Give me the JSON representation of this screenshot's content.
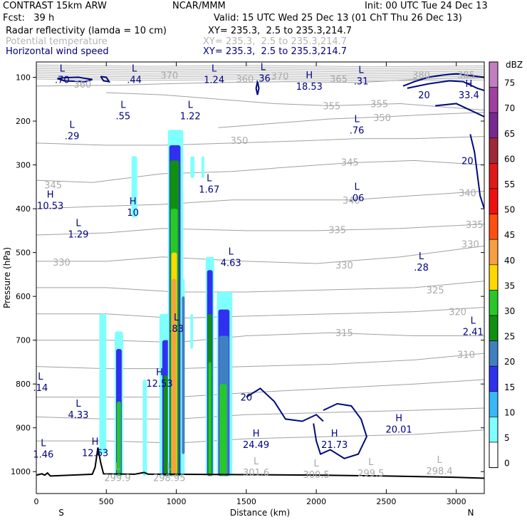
{
  "header": {
    "model": "CONTRAST 15km ARW",
    "center": "NCAR/MMM",
    "init": "Init: 00 UTC Tue 24 Dec 13",
    "fcst": "Fcst:   39 h",
    "valid": "Valid: 15 UTC Wed 25 Dec 13 (01 ChT Thu 26 Dec 13)",
    "fields": [
      {
        "name": "Radar reflectivity (lamda = 10 cm)",
        "xy": "XY= 235.3,  2.5 to 235.3,214.7",
        "color": "#000000"
      },
      {
        "name": "Potential temperature",
        "xy": "XY= 235.3,  2.5 to 235.3,214.7",
        "color": "#b4b4b4"
      },
      {
        "name": "Horizontal wind speed",
        "xy": "XY= 235.3,  2.5 to 235.3,214.7",
        "color": "#00007a"
      }
    ]
  },
  "chart_data": {
    "type": "cross-section",
    "xlabel": "Distance (km)",
    "ylabel": "Pressure (hPa)",
    "xlim": [
      0,
      3200
    ],
    "ylim": [
      1050,
      65
    ],
    "x_ticks": [
      0,
      500,
      1000,
      1500,
      2000,
      2500,
      3000
    ],
    "y_ticks": [
      100,
      200,
      300,
      400,
      500,
      600,
      700,
      800,
      900,
      1000
    ],
    "x_end_labels": {
      "left": "S",
      "right": "N"
    },
    "colorbar": {
      "unit": "dBZ",
      "levels": [
        75,
        70,
        65,
        60,
        55,
        50,
        45,
        40,
        35,
        30,
        25,
        20,
        15,
        10,
        5,
        0
      ],
      "colors": [
        "#c080c0",
        "#a040a0",
        "#782890",
        "#a02838",
        "#e01818",
        "#f01010",
        "#ff5010",
        "#f8a040",
        "#ffd800",
        "#28c828",
        "#109010",
        "#4080c0",
        "#3030f0",
        "#38b8f8",
        "#80ffff",
        "#ffffff"
      ]
    },
    "wind_labels": [
      {
        "kind": "L",
        "value": ".70",
        "x": 185,
        "p": 100
      },
      {
        "kind": "L",
        "value": ".44",
        "x": 700,
        "p": 100
      },
      {
        "kind": "L",
        "value": "1.24",
        "x": 1270,
        "p": 100
      },
      {
        "kind": "L",
        "value": ".36",
        "x": 1620,
        "p": 97
      },
      {
        "kind": "H",
        "value": "18.53",
        "x": 1950,
        "p": 115
      },
      {
        "kind": "L",
        "value": ".31",
        "x": 2320,
        "p": 103
      },
      {
        "kind": "H",
        "value": "33.4",
        "x": 3090,
        "p": 135
      },
      {
        "kind": "L",
        "value": ".55",
        "x": 620,
        "p": 183
      },
      {
        "kind": "L",
        "value": "1.22",
        "x": 1100,
        "p": 183
      },
      {
        "kind": "L",
        "value": ".29",
        "x": 255,
        "p": 228
      },
      {
        "kind": "L",
        "value": ".76",
        "x": 2290,
        "p": 215
      },
      {
        "kind": "L",
        "value": "1.67",
        "x": 1235,
        "p": 350
      },
      {
        "kind": "H",
        "value": "10.53",
        "x": 100,
        "p": 388
      },
      {
        "kind": "H",
        "value": "10",
        "x": 690,
        "p": 403
      },
      {
        "kind": "L",
        "value": ".06",
        "x": 2290,
        "p": 370
      },
      {
        "kind": "L",
        "value": "1.29",
        "x": 300,
        "p": 453
      },
      {
        "kind": "L",
        "value": "4.63",
        "x": 1390,
        "p": 518
      },
      {
        "kind": "L",
        "value": ".28",
        "x": 2750,
        "p": 528
      },
      {
        "kind": "L",
        "value": ".83",
        "x": 1000,
        "p": 668
      },
      {
        "kind": "L",
        "value": "2.41",
        "x": 3120,
        "p": 675
      },
      {
        "kind": "H",
        "value": "12.53",
        "x": 880,
        "p": 793
      },
      {
        "kind": "L",
        "value": ".14",
        "x": 30,
        "p": 803
      },
      {
        "kind": "L",
        "value": "4.33",
        "x": 300,
        "p": 865
      },
      {
        "kind": "H",
        "value": "24.49",
        "x": 1570,
        "p": 933
      },
      {
        "kind": "H",
        "value": "21.73",
        "x": 2130,
        "p": 933
      },
      {
        "kind": "H",
        "value": "20.01",
        "x": 2590,
        "p": 898
      },
      {
        "kind": "H",
        "value": "12.63",
        "x": 420,
        "p": 952
      },
      {
        "kind": "L",
        "value": "1.46",
        "x": 50,
        "p": 955
      }
    ],
    "theta_labels": [
      {
        "text": "360",
        "x": 330,
        "p": 115
      },
      {
        "text": "370",
        "x": 950,
        "p": 95
      },
      {
        "text": "360",
        "x": 1490,
        "p": 103
      },
      {
        "text": "370",
        "x": 1740,
        "p": 97
      },
      {
        "text": "365",
        "x": 2160,
        "p": 103
      },
      {
        "text": "380",
        "x": 2750,
        "p": 94
      },
      {
        "text": "385",
        "x": 3070,
        "p": 94
      },
      {
        "text": "355",
        "x": 2110,
        "p": 165
      },
      {
        "text": "355",
        "x": 2450,
        "p": 160
      },
      {
        "text": "350",
        "x": 2470,
        "p": 192
      },
      {
        "text": "350",
        "x": 1450,
        "p": 244
      },
      {
        "text": "345",
        "x": 2240,
        "p": 293
      },
      {
        "text": "345",
        "x": 120,
        "p": 345
      },
      {
        "text": "340",
        "x": 2250,
        "p": 380
      },
      {
        "text": "340",
        "x": 3080,
        "p": 363
      },
      {
        "text": "335",
        "x": 2150,
        "p": 448
      },
      {
        "text": "335",
        "x": 3130,
        "p": 436
      },
      {
        "text": "330",
        "x": 180,
        "p": 522
      },
      {
        "text": "330",
        "x": 2200,
        "p": 528
      },
      {
        "text": "330",
        "x": 3100,
        "p": 480
      },
      {
        "text": "325",
        "x": 2850,
        "p": 585
      },
      {
        "text": "320",
        "x": 3010,
        "p": 635
      },
      {
        "text": "315",
        "x": 2200,
        "p": 683
      },
      {
        "text": "310",
        "x": 3070,
        "p": 732
      }
    ],
    "theta_low_labels": [
      {
        "text": "299.9",
        "x": 580,
        "p": 1005
      },
      {
        "text": "298.95",
        "x": 950,
        "p": 1005
      },
      {
        "text": "301.6",
        "x": 1570,
        "p": 993
      },
      {
        "text": "300.5",
        "x": 2000,
        "p": 998
      },
      {
        "text": "299.5",
        "x": 2390,
        "p": 995
      },
      {
        "text": "298.4",
        "x": 2880,
        "p": 990
      }
    ],
    "wind_contour_labels": [
      {
        "text": "20",
        "x": 2770,
        "p": 140
      },
      {
        "text": "20",
        "x": 3080,
        "p": 290
      },
      {
        "text": "20",
        "x": 1500,
        "p": 830
      }
    ]
  }
}
